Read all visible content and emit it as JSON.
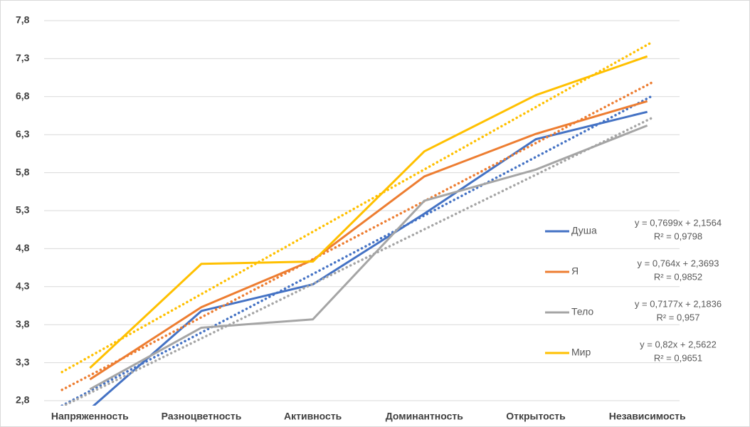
{
  "chart_data": {
    "type": "line",
    "categories": [
      "Напряженность",
      "Разноцветность",
      "Активность",
      "Доминантность",
      "Открытость",
      "Независимость"
    ],
    "ylim": [
      2.8,
      7.8
    ],
    "yticks": [
      {
        "value": 2.8,
        "label": "2,8"
      },
      {
        "value": 3.3,
        "label": "3,3"
      },
      {
        "value": 3.8,
        "label": "3,8"
      },
      {
        "value": 4.3,
        "label": "4,3"
      },
      {
        "value": 4.8,
        "label": "4,8"
      },
      {
        "value": 5.3,
        "label": "5,3"
      },
      {
        "value": 5.8,
        "label": "5,8"
      },
      {
        "value": 6.3,
        "label": "6,3"
      },
      {
        "value": 6.8,
        "label": "6,8"
      },
      {
        "value": 7.3,
        "label": "7,3"
      },
      {
        "value": 7.8,
        "label": "7,8"
      }
    ],
    "grid": true,
    "legend": "right",
    "series": [
      {
        "name": "Душа",
        "color": "#4472c4",
        "values": [
          2.69,
          3.98,
          4.33,
          5.26,
          6.24,
          6.6
        ],
        "trendline": {
          "slope": 0.7699,
          "intercept": 2.1564,
          "equation": "y = 0,7699x + 2,1564",
          "r2": "R² = 0,9798"
        }
      },
      {
        "name": "Я",
        "color": "#ed7d31",
        "values": [
          3.08,
          4.03,
          4.65,
          5.75,
          6.31,
          6.74
        ],
        "trendline": {
          "slope": 0.764,
          "intercept": 2.3693,
          "equation": "y = 0,764x + 2,3693",
          "r2": "R² = 0,9852"
        }
      },
      {
        "name": "Тело",
        "color": "#a5a5a5",
        "values": [
          2.95,
          3.76,
          3.87,
          5.43,
          5.84,
          6.42
        ],
        "trendline": {
          "slope": 0.7177,
          "intercept": 2.1836,
          "equation": "y = 0,7177x + 2,1836",
          "r2": "R² = 0,957"
        }
      },
      {
        "name": "Мир",
        "color": "#ffc000",
        "values": [
          3.23,
          4.6,
          4.63,
          6.08,
          6.82,
          7.33
        ],
        "trendline": {
          "slope": 0.82,
          "intercept": 2.5622,
          "equation": "y = 0,82x + 2,5622",
          "r2": "R² = 0,9651"
        }
      }
    ]
  }
}
